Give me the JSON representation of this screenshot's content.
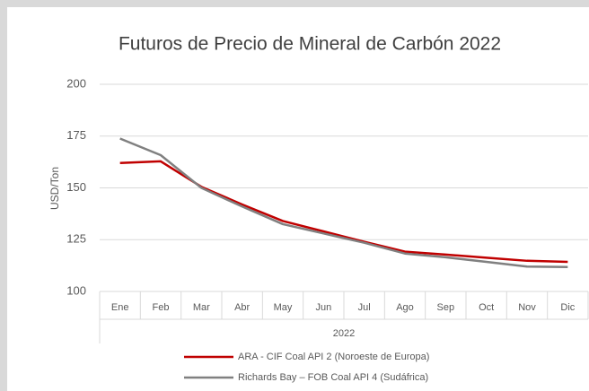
{
  "chart_data": {
    "type": "line",
    "title": "Futuros de Precio de Mineral de Carbón 2022",
    "ylabel": "USD/Ton",
    "xlabel": "2022",
    "categories": [
      "Ene",
      "Feb",
      "Mar",
      "Abr",
      "May",
      "Jun",
      "Jul",
      "Ago",
      "Sep",
      "Oct",
      "Nov",
      "Dic"
    ],
    "series": [
      {
        "name": "ARA - CIF Coal  API 2 (Noroeste de Europa)",
        "color": "#c00000",
        "values": [
          162,
          162.8,
          150.5,
          142,
          134,
          129,
          124,
          119.2,
          117.8,
          116.3,
          114.8,
          114.3
        ]
      },
      {
        "name": "Richards Bay – FOB Coal  API 4 (Sudáfrica)",
        "color": "#808080",
        "values": [
          173.8,
          165.8,
          150,
          141,
          132.5,
          128,
          123.5,
          118.3,
          116.5,
          114.3,
          112,
          111.8
        ]
      }
    ],
    "ylim": [
      100,
      200
    ],
    "yticks": [
      100,
      125,
      150,
      175,
      200
    ],
    "grid": true
  }
}
